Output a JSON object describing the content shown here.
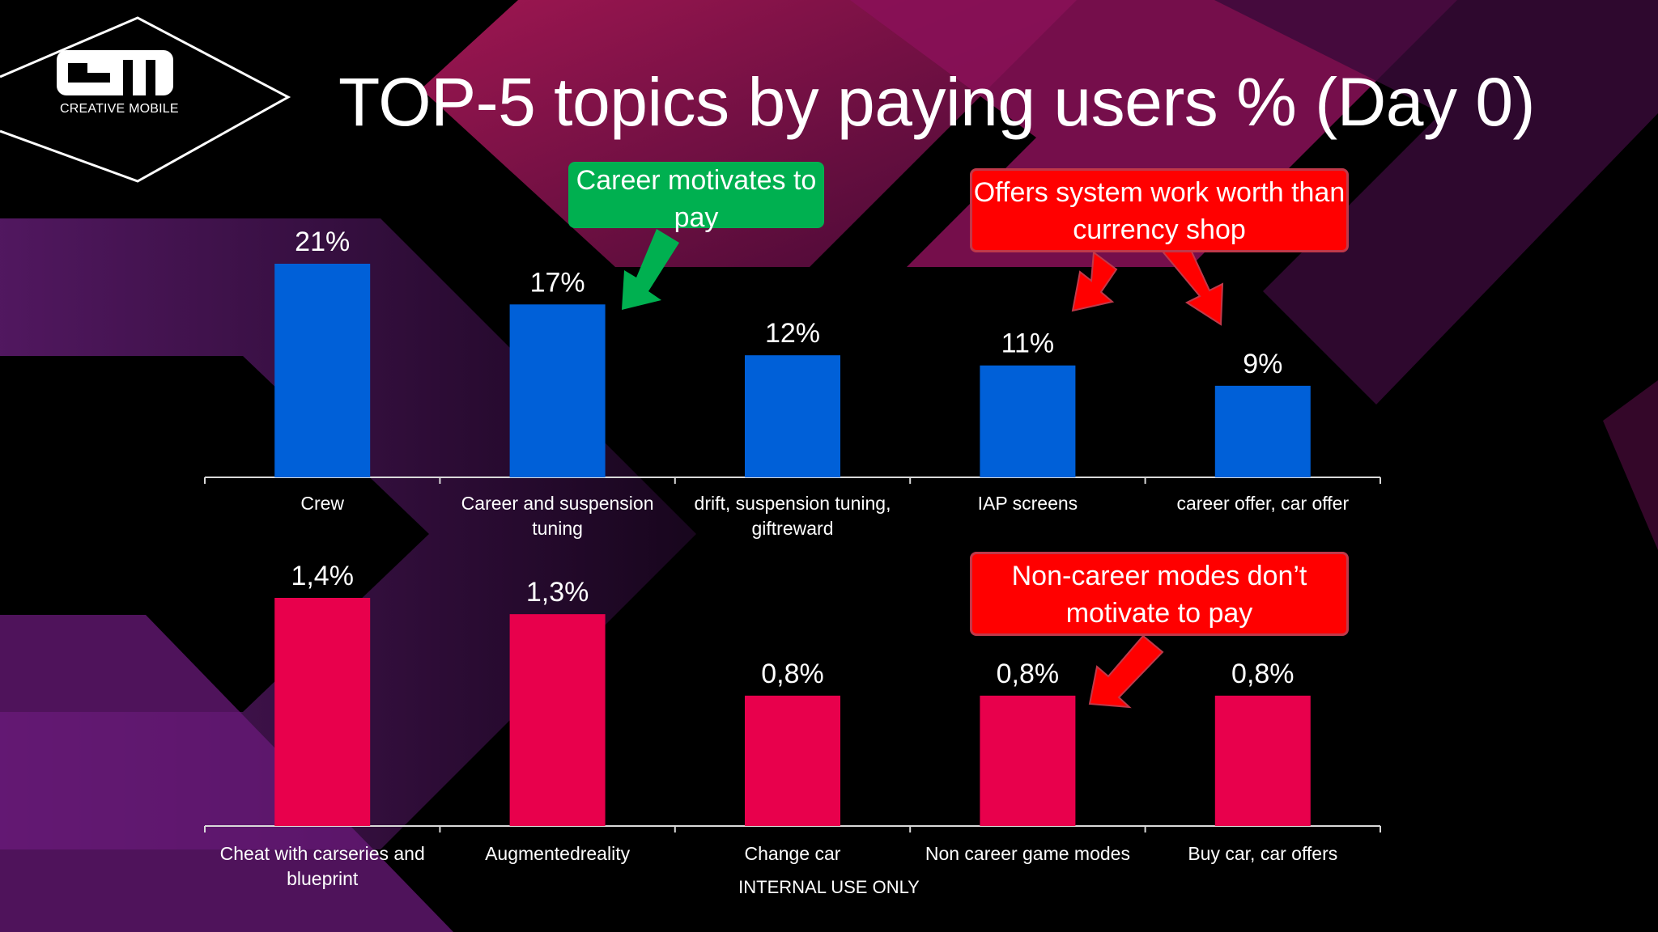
{
  "brand": {
    "logo_text": "CREATIVE MOBILE"
  },
  "title": "TOP-5 topics by paying users % (Day 0)",
  "colors": {
    "top_bar": "#0060d8",
    "bottom_bar": "#e8004c",
    "green_callout": "#00b050",
    "red_callout": "#ff0000"
  },
  "chart_data": [
    {
      "type": "bar",
      "title": "",
      "categories": [
        "Crew",
        "Career and suspension tuning",
        "drift, suspension tuning, giftreward",
        "IAP screens",
        "career offer, car offer"
      ],
      "category_lines": [
        [
          "Crew"
        ],
        [
          "Career and suspension",
          "tuning"
        ],
        [
          "drift, suspension tuning,",
          "giftreward"
        ],
        [
          "IAP screens"
        ],
        [
          "career offer, car offer"
        ]
      ],
      "values": [
        21,
        17,
        12,
        11,
        9
      ],
      "labels": [
        "21%",
        "17%",
        "12%",
        "11%",
        "9%"
      ],
      "ylim": [
        0,
        21
      ],
      "xlabel": "",
      "ylabel": ""
    },
    {
      "type": "bar",
      "title": "",
      "categories": [
        "Cheat with carseries and blueprint",
        "Augmentedreality",
        "Change car",
        "Non career game modes",
        "Buy car, car offers"
      ],
      "category_lines": [
        [
          "Cheat with carseries and",
          "blueprint"
        ],
        [
          "Augmentedreality"
        ],
        [
          "Change car"
        ],
        [
          "Non career game modes"
        ],
        [
          "Buy car, car offers"
        ]
      ],
      "values": [
        1.4,
        1.3,
        0.8,
        0.8,
        0.8
      ],
      "labels": [
        "1,4%",
        "1,3%",
        "0,8%",
        "0,8%",
        "0,8%"
      ],
      "ylim": [
        0,
        1.4
      ],
      "xlabel": "",
      "ylabel": ""
    }
  ],
  "callouts": {
    "career": "Career motivates to pay",
    "offers": "Offers system work worth than currency shop",
    "noncareer": "Non-career modes don’t motivate to pay"
  },
  "footer": "INTERNAL USE ONLY"
}
